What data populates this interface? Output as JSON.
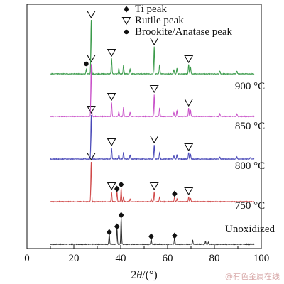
{
  "chart_data": {
    "type": "line",
    "xlabel_prefix": "2",
    "xlabel_theta": "θ",
    "xlabel_suffix": "/(°)",
    "xlim": [
      0,
      100
    ],
    "x_ticks": [
      0,
      20,
      40,
      60,
      80,
      100
    ],
    "y_ticks_shown": false,
    "legend": {
      "placement": "top-center",
      "entries": [
        {
          "marker": "diamond",
          "label": "Ti peak"
        },
        {
          "marker": "triangle-down-open",
          "label": "Rutile peak"
        },
        {
          "marker": "circle",
          "label": "Brookite/Anatase peak"
        }
      ]
    },
    "series": [
      {
        "name": "Unoxidized",
        "color": "#2a2a2a",
        "baseline": 0,
        "peaks": [
          [
            35.1,
            14
          ],
          [
            38.4,
            22
          ],
          [
            40.2,
            38
          ],
          [
            53.0,
            8
          ],
          [
            63.0,
            9
          ],
          [
            70.7,
            6
          ],
          [
            76.2,
            4
          ],
          [
            77.4,
            3
          ]
        ],
        "markers": [
          {
            "type": "diamond",
            "x": 35.1,
            "y": 17
          },
          {
            "type": "diamond",
            "x": 38.4,
            "y": 25
          },
          {
            "type": "diamond",
            "x": 40.2,
            "y": 41
          },
          {
            "type": "diamond",
            "x": 53.0,
            "y": 11
          },
          {
            "type": "diamond",
            "x": 63.0,
            "y": 12
          }
        ]
      },
      {
        "name": "750 °C",
        "color": "#d04848",
        "baseline": 60,
        "peaks": [
          [
            27.4,
            56
          ],
          [
            36.1,
            14
          ],
          [
            38.4,
            14
          ],
          [
            40.2,
            19
          ],
          [
            41.2,
            7
          ],
          [
            44.0,
            4
          ],
          [
            53.0,
            4
          ],
          [
            54.3,
            14
          ],
          [
            56.6,
            7
          ],
          [
            63.0,
            7
          ],
          [
            64.0,
            4
          ],
          [
            69.0,
            7
          ],
          [
            69.8,
            5
          ]
        ],
        "markers": [
          {
            "type": "triangle",
            "x": 27.4,
            "y": 64
          },
          {
            "type": "triangle",
            "x": 36.1,
            "y": 22
          },
          {
            "type": "diamond",
            "x": 38.4,
            "y": 18
          },
          {
            "type": "diamond",
            "x": 40.2,
            "y": 24
          },
          {
            "type": "triangle",
            "x": 54.3,
            "y": 22
          },
          {
            "type": "diamond",
            "x": 63.0,
            "y": 11
          },
          {
            "type": "triangle",
            "x": 69.0,
            "y": 15
          }
        ]
      },
      {
        "name": "800 °C",
        "color": "#4848b8",
        "baseline": 120,
        "peaks": [
          [
            27.4,
            62
          ],
          [
            36.1,
            16
          ],
          [
            39.2,
            6
          ],
          [
            41.2,
            10
          ],
          [
            44.0,
            6
          ],
          [
            54.3,
            20
          ],
          [
            56.6,
            9
          ],
          [
            62.7,
            5
          ],
          [
            64.0,
            6
          ],
          [
            69.0,
            9
          ],
          [
            69.8,
            7
          ],
          [
            82.3,
            3
          ],
          [
            89.6,
            3
          ],
          [
            95.3,
            2
          ]
        ],
        "markers": [
          {
            "type": "triangle",
            "x": 27.4,
            "y": 70
          },
          {
            "type": "triangle",
            "x": 36.1,
            "y": 24
          },
          {
            "type": "triangle",
            "x": 54.3,
            "y": 28
          },
          {
            "type": "triangle",
            "x": 69.0,
            "y": 17
          }
        ]
      },
      {
        "name": "850 °C",
        "color": "#c84fc8",
        "baseline": 180,
        "peaks": [
          [
            27.4,
            74
          ],
          [
            36.1,
            20
          ],
          [
            39.2,
            7
          ],
          [
            41.2,
            13
          ],
          [
            44.0,
            6
          ],
          [
            54.3,
            31
          ],
          [
            56.6,
            12
          ],
          [
            62.7,
            6
          ],
          [
            64.0,
            8
          ],
          [
            69.0,
            12
          ],
          [
            69.8,
            9
          ],
          [
            82.3,
            4
          ],
          [
            89.6,
            4
          ]
        ],
        "markers": [
          {
            "type": "triangle",
            "x": 27.4,
            "y": 82
          },
          {
            "type": "triangle",
            "x": 36.1,
            "y": 28
          },
          {
            "type": "triangle",
            "x": 54.3,
            "y": 39
          },
          {
            "type": "triangle",
            "x": 69.0,
            "y": 20
          }
        ]
      },
      {
        "name": "900 °C",
        "color": "#3a9a4a",
        "baseline": 240,
        "peaks": [
          [
            25.3,
            6
          ],
          [
            27.4,
            76
          ],
          [
            36.1,
            22
          ],
          [
            39.2,
            8
          ],
          [
            41.2,
            13
          ],
          [
            44.0,
            7
          ],
          [
            54.3,
            38
          ],
          [
            56.6,
            13
          ],
          [
            62.7,
            6
          ],
          [
            64.0,
            8
          ],
          [
            69.0,
            13
          ],
          [
            69.8,
            10
          ],
          [
            82.3,
            4
          ],
          [
            89.6,
            4
          ]
        ],
        "markers": [
          {
            "type": "circle",
            "x": 25.3,
            "y": 14
          },
          {
            "type": "triangle",
            "x": 27.4,
            "y": 84
          },
          {
            "type": "triangle",
            "x": 36.1,
            "y": 30
          },
          {
            "type": "triangle",
            "x": 54.3,
            "y": 46
          },
          {
            "type": "triangle",
            "x": 69.0,
            "y": 21
          }
        ]
      }
    ]
  },
  "watermark": "@有色金属在线"
}
